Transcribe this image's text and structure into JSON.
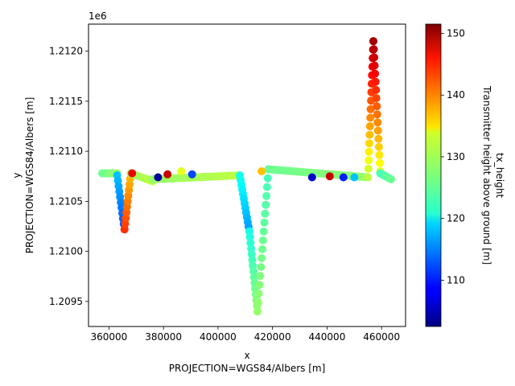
{
  "chart_data": {
    "type": "scatter",
    "xlabel_lines": [
      "x",
      "PROJECTION=WGS84/Albers [m]"
    ],
    "ylabel_lines": [
      "y",
      "PROJECTION=WGS84/Albers [m]"
    ],
    "y_offset_label": "1e6",
    "xlim": [
      352500,
      468800
    ],
    "ylim": [
      1.20925,
      1.21227
    ],
    "x_ticks": [
      360000,
      380000,
      400000,
      420000,
      440000,
      460000
    ],
    "x_tick_labels": [
      "360000",
      "380000",
      "400000",
      "420000",
      "440000",
      "460000"
    ],
    "y_ticks": [
      1.2095,
      1.21,
      1.2105,
      1.211,
      1.2115,
      1.212
    ],
    "y_tick_labels": [
      "1.2095",
      "1.2100",
      "1.2105",
      "1.2110",
      "1.2115",
      "1.2120"
    ],
    "grid": false,
    "colorbar": {
      "label_lines": [
        "tx_height",
        "Transmitter height above ground [m]"
      ],
      "colormap": "jet",
      "range": [
        102.5,
        151.5
      ],
      "ticks": [
        110,
        120,
        130,
        140,
        150
      ],
      "tick_labels": [
        "110",
        "120",
        "130",
        "140",
        "150"
      ]
    },
    "segments": [
      {
        "x": [
          357500,
          363000
        ],
        "y": [
          1.21078,
          1.21078
        ],
        "c": [
          126,
          128
        ],
        "n": 10
      },
      {
        "x": [
          363000,
          365700
        ],
        "y": [
          1.21076,
          1.21022
        ],
        "c": [
          118,
          112
        ],
        "n": 10
      },
      {
        "x": [
          365700,
          368000
        ],
        "y": [
          1.21022,
          1.21078
        ],
        "c": [
          143,
          136
        ],
        "n": 10
      },
      {
        "x": [
          368000,
          376000
        ],
        "y": [
          1.21078,
          1.2107
        ],
        "c": [
          128,
          130
        ],
        "n": 10
      },
      {
        "x": [
          376000,
          408000
        ],
        "y": [
          1.21072,
          1.21076
        ],
        "c": [
          128,
          130
        ],
        "n": 40
      },
      {
        "x": [
          408000,
          411500
        ],
        "y": [
          1.21076,
          1.2102
        ],
        "c": [
          122,
          116
        ],
        "n": 12
      },
      {
        "x": [
          411500,
          414500
        ],
        "y": [
          1.2102,
          1.2094
        ],
        "c": [
          122,
          128
        ],
        "n": 14
      },
      {
        "x": [
          414500,
          418500
        ],
        "y": [
          1.2094,
          1.21082
        ],
        "c": [
          128,
          124
        ],
        "n": 16
      },
      {
        "x": [
          418500,
          455000
        ],
        "y": [
          1.21082,
          1.21074
        ],
        "c": [
          126,
          128
        ],
        "n": 40
      },
      {
        "x": [
          455000,
          457000
        ],
        "y": [
          1.21074,
          1.2121
        ],
        "c": [
          130,
          150
        ],
        "n": 16
      },
      {
        "x": [
          457000,
          459500
        ],
        "y": [
          1.2121,
          1.2108
        ],
        "c": [
          150,
          132
        ],
        "n": 16
      },
      {
        "x": [
          459500,
          463500
        ],
        "y": [
          1.21078,
          1.21072
        ],
        "c": [
          124,
          126
        ],
        "n": 10
      }
    ],
    "highlights": [
      {
        "x": [
          378000,
          1.21074
        ],
        "c": 104
      },
      {
        "x": [
          381500,
          1.21077
        ],
        "c": 148
      },
      {
        "x": [
          386500,
          1.2108
        ],
        "c": 132
      },
      {
        "x": [
          390500,
          1.21077
        ],
        "c": 112
      },
      {
        "x": [
          368500,
          1.21078
        ],
        "c": 146
      },
      {
        "x": [
          434500,
          1.21074
        ],
        "c": 106
      },
      {
        "x": [
          441000,
          1.21075
        ],
        "c": 148
      },
      {
        "x": [
          446000,
          1.21074
        ],
        "c": 110
      },
      {
        "x": [
          450000,
          1.21074
        ],
        "c": 118
      },
      {
        "x": [
          416000,
          1.2108
        ],
        "c": 136
      }
    ]
  }
}
